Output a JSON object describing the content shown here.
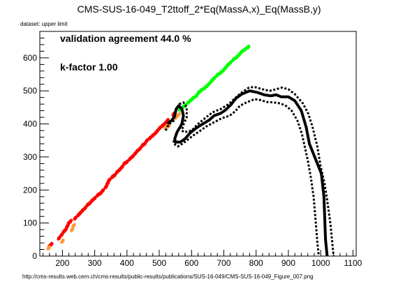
{
  "chart_data": {
    "type": "scatter",
    "title": "CMS-SUS-16-049_T2ttoff_2*Eq(MassA,x)_Eq(MassB,y)",
    "dataset_label": "dataset: upper limit",
    "annotations": [
      "validation agreement 44.0 %",
      "k-factor 1.00"
    ],
    "footer_url": "http://cms-results.web.cern.ch/cms-results/public-results/publications/SUS-16-049/CMS-SUS-16-049_Figure_007.png",
    "xlim": [
      130,
      1110
    ],
    "ylim": [
      0,
      680
    ],
    "x_ticks": [
      200,
      300,
      400,
      500,
      600,
      700,
      800,
      900,
      1000,
      1100
    ],
    "x_tick_labels": [
      "200",
      "300",
      "400",
      "500",
      "600",
      "700",
      "800",
      "900",
      "1000",
      "1100"
    ],
    "y_ticks": [
      0,
      100,
      200,
      300,
      400,
      500,
      600
    ],
    "y_tick_labels": [
      "0",
      "100",
      "200",
      "300",
      "400",
      "500",
      "600"
    ],
    "grid": false,
    "colors": {
      "excluded": "#ff0000",
      "allowed": "#00ff00",
      "partial": "#ff9933",
      "contour": "#000000"
    },
    "series": [
      {
        "class": "excluded",
        "points": [
          [
            160,
            30
          ],
          [
            165,
            35
          ],
          [
            190,
            55
          ],
          [
            198,
            65
          ],
          [
            205,
            75
          ],
          [
            210,
            80
          ],
          [
            215,
            90
          ],
          [
            220,
            100
          ],
          [
            225,
            105
          ],
          [
            240,
            115
          ],
          [
            250,
            125
          ],
          [
            255,
            130
          ],
          [
            262,
            138
          ],
          [
            270,
            145
          ],
          [
            278,
            155
          ],
          [
            285,
            160
          ],
          [
            292,
            168
          ],
          [
            300,
            175
          ],
          [
            310,
            185
          ],
          [
            318,
            190
          ],
          [
            325,
            198
          ],
          [
            335,
            210
          ],
          [
            340,
            220
          ],
          [
            345,
            230
          ],
          [
            355,
            240
          ],
          [
            362,
            245
          ],
          [
            370,
            255
          ],
          [
            378,
            262
          ],
          [
            385,
            270
          ],
          [
            392,
            280
          ],
          [
            400,
            285
          ],
          [
            410,
            295
          ],
          [
            418,
            302
          ],
          [
            425,
            310
          ],
          [
            432,
            318
          ],
          [
            440,
            325
          ],
          [
            448,
            335
          ],
          [
            455,
            340
          ],
          [
            462,
            350
          ],
          [
            472,
            358
          ],
          [
            480,
            365
          ],
          [
            488,
            372
          ],
          [
            495,
            380
          ],
          [
            502,
            388
          ],
          [
            510,
            395
          ],
          [
            518,
            402
          ],
          [
            525,
            410
          ],
          [
            545,
            430
          ]
        ]
      },
      {
        "class": "partial",
        "points": [
          [
            158,
            25
          ],
          [
            200,
            45
          ],
          [
            230,
            80
          ],
          [
            235,
            92
          ],
          [
            520,
            390
          ],
          [
            530,
            395
          ],
          [
            552,
            420
          ],
          [
            560,
            428
          ]
        ]
      },
      {
        "class": "allowed",
        "points": [
          [
            565,
            445
          ],
          [
            572,
            450
          ],
          [
            580,
            455
          ],
          [
            590,
            465
          ],
          [
            598,
            472
          ],
          [
            605,
            478
          ],
          [
            615,
            485
          ],
          [
            622,
            495
          ],
          [
            630,
            502
          ],
          [
            640,
            508
          ],
          [
            648,
            515
          ],
          [
            655,
            522
          ],
          [
            662,
            530
          ],
          [
            670,
            538
          ],
          [
            680,
            548
          ],
          [
            690,
            555
          ],
          [
            698,
            562
          ],
          [
            705,
            570
          ],
          [
            712,
            578
          ],
          [
            720,
            585
          ],
          [
            730,
            595
          ],
          [
            740,
            602
          ],
          [
            748,
            610
          ],
          [
            755,
            618
          ],
          [
            765,
            625
          ],
          [
            775,
            632
          ]
        ]
      }
    ],
    "contours": [
      {
        "style": "solid",
        "points": [
          [
            525,
            400
          ],
          [
            540,
            412
          ],
          [
            548,
            425
          ],
          [
            552,
            445
          ],
          [
            560,
            455
          ],
          [
            570,
            445
          ],
          [
            575,
            425
          ],
          [
            570,
            400
          ],
          [
            555,
            375
          ],
          [
            548,
            355
          ],
          [
            550,
            345
          ],
          [
            565,
            345
          ],
          [
            580,
            355
          ],
          [
            595,
            372
          ],
          [
            615,
            388
          ],
          [
            635,
            400
          ],
          [
            655,
            412
          ],
          [
            670,
            425
          ],
          [
            690,
            432
          ],
          [
            705,
            442
          ],
          [
            722,
            458
          ],
          [
            738,
            478
          ],
          [
            755,
            490
          ],
          [
            780,
            500
          ],
          [
            805,
            495
          ],
          [
            825,
            488
          ],
          [
            845,
            485
          ],
          [
            862,
            488
          ],
          [
            878,
            482
          ],
          [
            900,
            482
          ],
          [
            920,
            470
          ],
          [
            940,
            440
          ],
          [
            955,
            390
          ],
          [
            965,
            340
          ],
          [
            1002,
            250
          ],
          [
            1010,
            180
          ],
          [
            1015,
            50
          ],
          [
            1020,
            0
          ]
        ]
      },
      {
        "style": "dashed",
        "points": [
          [
            520,
            380
          ],
          [
            530,
            400
          ],
          [
            545,
            410
          ],
          [
            550,
            435
          ],
          [
            562,
            460
          ],
          [
            575,
            465
          ],
          [
            585,
            450
          ],
          [
            585,
            420
          ],
          [
            575,
            398
          ],
          [
            570,
            380
          ],
          [
            578,
            375
          ],
          [
            600,
            380
          ],
          [
            620,
            400
          ],
          [
            645,
            420
          ],
          [
            665,
            435
          ],
          [
            690,
            445
          ],
          [
            715,
            460
          ],
          [
            735,
            478
          ],
          [
            755,
            495
          ],
          [
            778,
            510
          ],
          [
            795,
            512
          ],
          [
            820,
            505
          ],
          [
            842,
            500
          ],
          [
            862,
            505
          ],
          [
            880,
            510
          ],
          [
            900,
            505
          ],
          [
            920,
            490
          ],
          [
            945,
            462
          ],
          [
            962,
            430
          ],
          [
            975,
            390
          ],
          [
            990,
            330
          ],
          [
            1000,
            270
          ],
          [
            1012,
            220
          ],
          [
            1020,
            170
          ],
          [
            1030,
            100
          ],
          [
            1040,
            0
          ]
        ]
      },
      {
        "style": "dashed",
        "points": [
          [
            545,
            350
          ],
          [
            545,
            340
          ],
          [
            558,
            332
          ],
          [
            572,
            340
          ],
          [
            588,
            352
          ],
          [
            605,
            365
          ],
          [
            625,
            378
          ],
          [
            645,
            392
          ],
          [
            670,
            405
          ],
          [
            695,
            418
          ],
          [
            718,
            425
          ],
          [
            735,
            438
          ],
          [
            750,
            455
          ],
          [
            770,
            465
          ],
          [
            795,
            475
          ],
          [
            815,
            472
          ],
          [
            835,
            466
          ],
          [
            855,
            465
          ],
          [
            875,
            462
          ],
          [
            892,
            455
          ],
          [
            910,
            440
          ],
          [
            928,
            410
          ],
          [
            942,
            370
          ],
          [
            952,
            325
          ],
          [
            960,
            290
          ],
          [
            970,
            235
          ],
          [
            978,
            180
          ],
          [
            985,
            100
          ],
          [
            990,
            40
          ],
          [
            994,
            0
          ]
        ]
      }
    ]
  }
}
